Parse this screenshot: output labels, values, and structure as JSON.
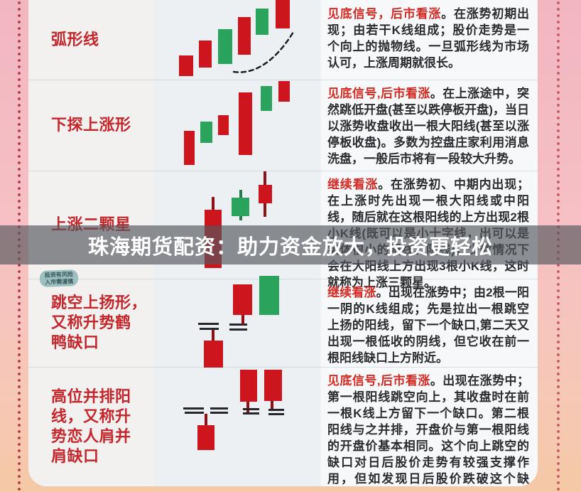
{
  "watermark": {
    "text": "珠海期货配资：助力资金放大，投资更轻松"
  },
  "risk_badge": {
    "line1": "投资有风险",
    "line2": "入市需谨慎"
  },
  "table": {
    "rows": [
      {
        "name": "弧形线",
        "signal": "见底信号，后市看涨",
        "description": "。在涨势初期出现；由若干K线组成；股价走势是一个向上的抛物线。一旦弧形线为市场认可，上涨周期就很长。"
      },
      {
        "name": "下探上涨形",
        "signal": "见底信号,后市看涨",
        "description": "。在上涨途中，突然跳低开盘(甚至以跌停板开盘)，当日以涨势收盘收出一根大阳线(甚至以涨停板收盘)。多数为控盘庄家利用消息洗盘，一般后市将有一段较大升势。"
      },
      {
        "name": "上涨二颗星",
        "signal": "继续看涨",
        "description": "。在涨势初、中期内出现；在上涨时先出现一根大阳线或中阳线，随后就在这根阳线的上方出现2根小K线(既可以是小十字线，出可以是实体很小的阳线、阴线)，少数情况下会在大阳线上方出现3根小K线，这时就称为上涨三颗星。"
      },
      {
        "name": "跳空上扬形，\n又称升势鹤\n鸭缺口",
        "signal": "继续看涨",
        "description": "。出现在涨势中；由2根一阳一阴的K线组成；先是拉出一根跳空上扬的阳线，留下一个缺口,第二天又出现一根低收的阴线，但它收在前一根阳线缺口上方附近。"
      },
      {
        "name": "高位并排阳\n线，又称升\n势恋人肩并\n肩缺口",
        "signal": "见底信号,后市看涨",
        "description": "。出现在涨势中；第一根阳线跳空向上，其收盘时在前一根K线上方留下一个缺口。第二根阳线与之并排，开盘价与第一根阳线的开盘价基本相同。这个向上跳空的缺口对日后股价走势有较强支撑作用，但如发现日后股价跌破这个缺口，股价走势就会转弱。"
      }
    ]
  },
  "colors": {
    "red_candle": "#cc151d",
    "green_candle": "#2aa45c",
    "red_wick": "#8e1118",
    "green_wick": "#1f7f46",
    "gap_mark": "#26262a",
    "pattern_name": "#c4262b",
    "signal_text": "#d32b24",
    "body_text": "#2a2c30",
    "watermark_band": "rgba(84,86,92,0.66)"
  },
  "diagrams": [
    {
      "pattern": "arc-line",
      "elements": [
        {
          "t": "body",
          "c": "red",
          "r": [
            252,
            78,
            20,
            29
          ]
        },
        {
          "t": "body",
          "c": "red",
          "r": [
            280,
            57,
            18,
            38
          ]
        },
        {
          "t": "body",
          "c": "green",
          "r": [
            307,
            41,
            20,
            49
          ]
        },
        {
          "t": "body",
          "c": "red",
          "r": [
            335,
            24,
            18,
            53
          ]
        },
        {
          "t": "body",
          "c": "green",
          "r": [
            360,
            12,
            18,
            37
          ]
        },
        {
          "t": "body",
          "c": "red",
          "r": [
            388,
            0,
            20,
            40
          ]
        }
      ]
    },
    {
      "pattern": "probe-down-rise",
      "elements": [
        {
          "t": "body",
          "c": "red",
          "r": [
            259,
            184,
            15,
            48
          ]
        },
        {
          "t": "body",
          "c": "green",
          "r": [
            282,
            171,
            17,
            30
          ]
        },
        {
          "t": "body",
          "c": "red",
          "r": [
            307,
            162,
            15,
            28
          ]
        },
        {
          "t": "body",
          "c": "red",
          "r": [
            336,
            130,
            19,
            88
          ]
        },
        {
          "t": "body",
          "c": "green",
          "r": [
            367,
            121,
            16,
            35
          ]
        },
        {
          "t": "body",
          "c": "red",
          "r": [
            392,
            114,
            16,
            29
          ]
        }
      ]
    },
    {
      "pattern": "two-rising-stars",
      "elements": [
        {
          "t": "wick",
          "c": "red",
          "r": [
            298,
            277,
            4,
            19
          ]
        },
        {
          "t": "body",
          "c": "red",
          "r": [
            288,
            295,
            24,
            82
          ]
        },
        {
          "t": "wick",
          "c": "green",
          "r": [
            337,
            267,
            4,
            11
          ]
        },
        {
          "t": "body",
          "c": "green",
          "r": [
            326,
            278,
            25,
            26
          ]
        },
        {
          "t": "wick",
          "c": "green",
          "r": [
            337,
            304,
            4,
            6
          ]
        },
        {
          "t": "wick",
          "c": "red",
          "r": [
            371,
            241,
            4,
            20
          ]
        },
        {
          "t": "body",
          "c": "red",
          "r": [
            364,
            260,
            19,
            26
          ]
        },
        {
          "t": "wick",
          "c": "red",
          "r": [
            371,
            286,
            4,
            19
          ]
        }
      ]
    },
    {
      "pattern": "gap-up-crane-duck",
      "elements": [
        {
          "t": "wick",
          "c": "red",
          "r": [
            298,
            463,
            4,
            17
          ]
        },
        {
          "t": "body",
          "c": "red",
          "r": [
            287,
            479,
            27,
            38
          ]
        },
        {
          "t": "gap",
          "r": [
            279,
            454,
            29,
            3
          ]
        },
        {
          "t": "gap",
          "r": [
            281,
            461,
            27,
            3
          ]
        },
        {
          "t": "gap",
          "r": [
            323,
            455,
            25,
            3
          ]
        },
        {
          "t": "gap",
          "r": [
            323,
            462,
            25,
            3
          ]
        },
        {
          "t": "body",
          "c": "red",
          "r": [
            328,
            400,
            27,
            43
          ]
        },
        {
          "t": "wick",
          "c": "red",
          "r": [
            340,
            443,
            4,
            13
          ]
        },
        {
          "t": "body",
          "c": "green",
          "r": [
            365,
            388,
            28,
            55
          ]
        }
      ]
    },
    {
      "pattern": "high-parallel-yang",
      "elements": [
        {
          "t": "body",
          "c": "red",
          "r": [
            338,
            520,
            24,
            45
          ]
        },
        {
          "t": "wick",
          "c": "red",
          "r": [
            347,
            565,
            4,
            16
          ]
        },
        {
          "t": "body",
          "c": "red",
          "r": [
            372,
            520,
            25,
            44
          ]
        },
        {
          "t": "wick",
          "c": "red",
          "r": [
            381,
            564,
            4,
            13
          ]
        },
        {
          "t": "gap",
          "r": [
            258,
            573,
            29,
            3
          ]
        },
        {
          "t": "gap",
          "r": [
            260,
            579,
            27,
            3
          ]
        },
        {
          "t": "gap",
          "r": [
            296,
            573,
            25,
            3
          ]
        },
        {
          "t": "gap",
          "r": [
            296,
            579,
            25,
            3
          ]
        },
        {
          "t": "gap",
          "r": [
            342,
            574,
            23,
            3
          ]
        },
        {
          "t": "gap",
          "r": [
            342,
            580,
            23,
            3
          ]
        },
        {
          "t": "gap",
          "r": [
            378,
            575,
            22,
            3
          ]
        },
        {
          "t": "gap",
          "r": [
            378,
            581,
            22,
            3
          ]
        },
        {
          "t": "wick",
          "c": "red",
          "r": [
            288,
            582,
            4,
            16
          ]
        },
        {
          "t": "body",
          "c": "red",
          "r": [
            278,
            598,
            24,
            35
          ]
        }
      ]
    }
  ]
}
